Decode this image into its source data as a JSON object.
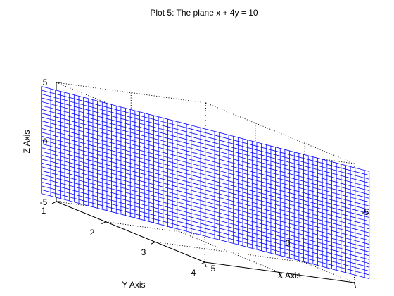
{
  "chart_data": {
    "type": "surface-mesh",
    "title": "Plot 5: The plane x + 4y = 10",
    "xlabel": "X Axis",
    "ylabel": "Y Axis",
    "zlabel": "Z Axis",
    "equation": "x + 4y = 10",
    "xlim": [
      -5,
      5
    ],
    "ylim": [
      1,
      4
    ],
    "zlim": [
      -5,
      5
    ],
    "x_ticks": [
      "5",
      "0",
      "-5"
    ],
    "y_ticks": [
      "1",
      "2",
      "3",
      "4"
    ],
    "z_ticks": [
      "5",
      "0",
      "-5"
    ],
    "z_range": [
      -4.5,
      4.5
    ],
    "x_range": [
      -6,
      6
    ],
    "mesh_columns": 70,
    "mesh_rows": 28,
    "mesh_color": "#0000ff",
    "box": "on",
    "grid": "off"
  }
}
